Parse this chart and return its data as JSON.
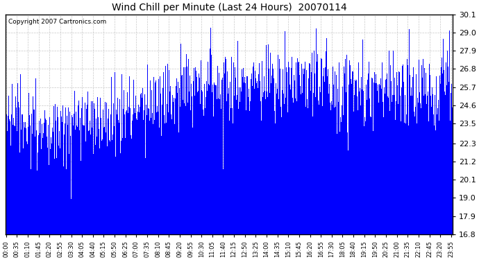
{
  "title": "Wind Chill per Minute (Last 24 Hours)  20070114",
  "copyright": "Copyright 2007 Cartronics.com",
  "bar_color": "#0000ff",
  "background_color": "#ffffff",
  "grid_color": "#c8c8c8",
  "ylim": [
    16.8,
    30.1
  ],
  "yticks": [
    16.8,
    17.9,
    19.0,
    20.1,
    21.2,
    22.3,
    23.5,
    24.6,
    25.7,
    26.8,
    27.9,
    29.0,
    30.1
  ],
  "total_minutes": 1440,
  "seed": 7,
  "x_tick_interval": 35
}
